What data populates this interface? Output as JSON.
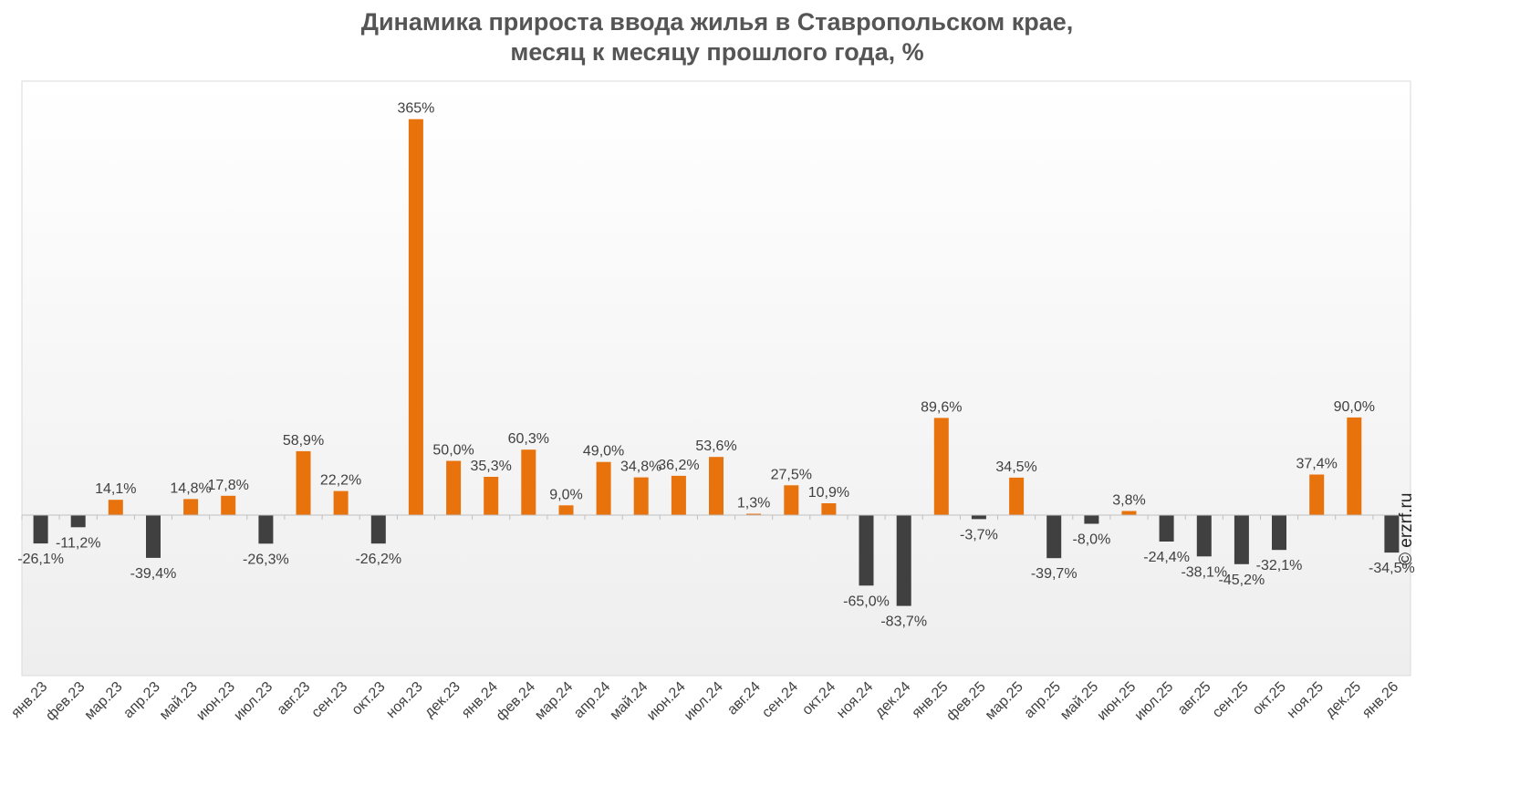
{
  "chart_data": {
    "type": "bar",
    "title": "Динамика прироста ввода жилья в Ставропольском крае,",
    "subtitle": "месяц к месяцу прошлого года, %",
    "categories": [
      "янв.23",
      "фев.23",
      "мар.23",
      "апр.23",
      "май.23",
      "июн.23",
      "июл.23",
      "авг.23",
      "сен.23",
      "окт.23",
      "ноя.23",
      "дек.23",
      "янв.24",
      "фев.24",
      "мар.24",
      "апр.24",
      "май.24",
      "июн.24",
      "июл.24",
      "авг.24",
      "сен.24",
      "окт.24",
      "ноя.24",
      "дек.24",
      "янв.25",
      "фев.25",
      "мар.25",
      "апр.25",
      "май.25",
      "июн.25",
      "июл.25",
      "авг.25",
      "сен.25",
      "окт.25",
      "ноя.25",
      "дек.25",
      "янв.26"
    ],
    "values": [
      -26.1,
      -11.2,
      14.1,
      -39.4,
      14.8,
      17.8,
      -26.3,
      58.9,
      22.2,
      -26.2,
      365,
      50.0,
      35.3,
      60.3,
      9.0,
      49.0,
      34.8,
      36.2,
      53.6,
      1.3,
      27.5,
      10.9,
      -65.0,
      -83.7,
      89.6,
      -3.7,
      34.5,
      -39.7,
      -8.0,
      3.8,
      -24.4,
      -38.1,
      -45.2,
      -32.1,
      37.4,
      90.0,
      -34.5
    ],
    "data_labels": [
      "-26,1%",
      "-11,2%",
      "14,1%",
      "-39,4%",
      "14,8%",
      "17,8%",
      "-26,3%",
      "58,9%",
      "22,2%",
      "-26,2%",
      "365%",
      "50,0%",
      "35,3%",
      "60,3%",
      "9,0%",
      "49,0%",
      "34,8%",
      "36,2%",
      "53,6%",
      "1,3%",
      "27,5%",
      "10,9%",
      "-65,0%",
      "-83,7%",
      "89,6%",
      "-3,7%",
      "34,5%",
      "-39,7%",
      "-8,0%",
      "3,8%",
      "-24,4%",
      "-38,1%",
      "-45,2%",
      "-32,1%",
      "37,4%",
      "90,0%",
      "-34,5%"
    ],
    "ylim": [
      -150,
      400
    ],
    "positive_color": "#E8720C",
    "negative_color": "#404040",
    "grid": false,
    "legend": "none"
  },
  "watermark": "© erzrf.ru"
}
